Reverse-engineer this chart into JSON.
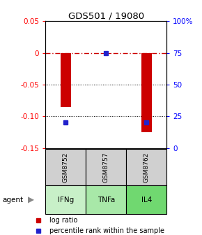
{
  "title": "GDS501 / 19080",
  "samples": [
    "GSM8752",
    "GSM8757",
    "GSM8762"
  ],
  "agents": [
    "IFNg",
    "TNFa",
    "IL4"
  ],
  "log_ratios": [
    -0.085,
    -0.002,
    -0.125
  ],
  "percentile_ranks": [
    0.2,
    0.75,
    0.2
  ],
  "ymin": -0.15,
  "ymax": 0.05,
  "bar_color": "#cc0000",
  "dot_color": "#2222cc",
  "zero_line_color": "#cc0000",
  "agent_colors": [
    "#c8f0c8",
    "#a8e8a8",
    "#70d870"
  ],
  "sample_bg": "#d0d0d0",
  "left_yticks": [
    0.05,
    0.0,
    -0.05,
    -0.1,
    -0.15
  ],
  "left_yticklabels": [
    "0.05",
    "0",
    "-0.05",
    "-0.10",
    "-0.15"
  ],
  "right_yticks_pct": [
    1.0,
    0.75,
    0.5,
    0.25,
    0.0
  ],
  "right_yticklabels": [
    "100%",
    "75",
    "50",
    "25",
    "0"
  ]
}
